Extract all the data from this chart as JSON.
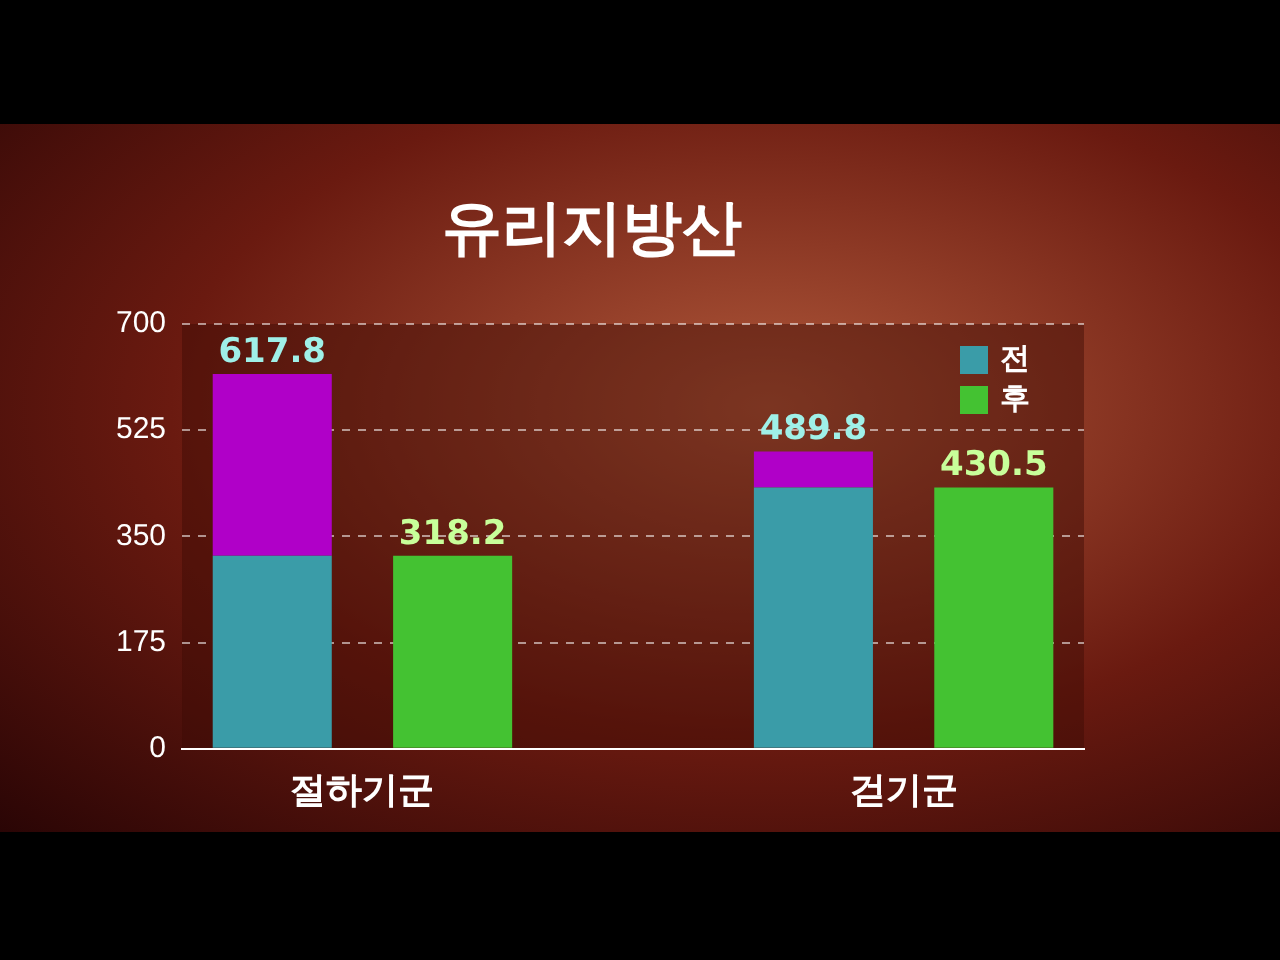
{
  "chart_data": {
    "type": "bar",
    "title": "유리지방산",
    "categories": [
      "절하기군",
      null,
      null,
      "걷기군",
      null
    ],
    "stacked": true,
    "series": [
      {
        "name": "전",
        "color": "#3a9ca8",
        "values": [
          318.2,
          null,
          null,
          430.5,
          null
        ]
      },
      {
        "color": "#b000c8",
        "values": [
          299.6,
          null,
          null,
          59.3,
          null
        ]
      },
      {
        "name": "후",
        "color": "#44c232",
        "values": [
          null,
          318.2,
          null,
          null,
          430.5
        ],
        "value_labels": [
          null,
          "318.2",
          null,
          null,
          "430.5"
        ]
      }
    ],
    "totals": [
      "617.8",
      null,
      null,
      "489.8",
      null
    ],
    "ylim": [
      0,
      700
    ],
    "yticks": [
      0,
      175,
      350,
      525,
      700
    ],
    "grid": "y",
    "legend": "top right"
  }
}
